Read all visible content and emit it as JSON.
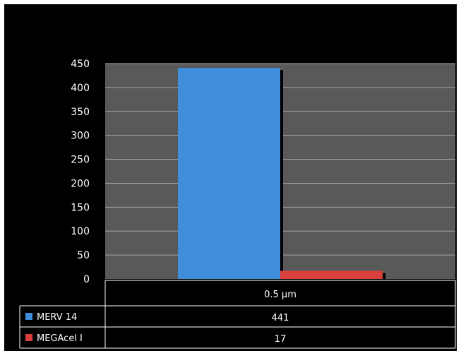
{
  "chart_data": {
    "type": "bar",
    "categories": [
      "0.5 µm"
    ],
    "series": [
      {
        "name": "MERV 14",
        "values": [
          441
        ],
        "color": "#3f8fdd"
      },
      {
        "name": "MEGAcel I",
        "values": [
          17
        ],
        "color": "#d9403b"
      }
    ],
    "ylim": [
      0,
      450
    ],
    "yticks": [
      "0",
      "50",
      "100",
      "150",
      "200",
      "250",
      "300",
      "350",
      "400",
      "450"
    ],
    "grid": true,
    "legend": "data-table",
    "plot_background": "#595959",
    "table": {
      "header": [
        "0.5 µm"
      ],
      "rows": [
        {
          "label": "MERV 14",
          "values": [
            "441"
          ]
        },
        {
          "label": "MEGAcel I",
          "values": [
            "17"
          ]
        }
      ]
    }
  }
}
